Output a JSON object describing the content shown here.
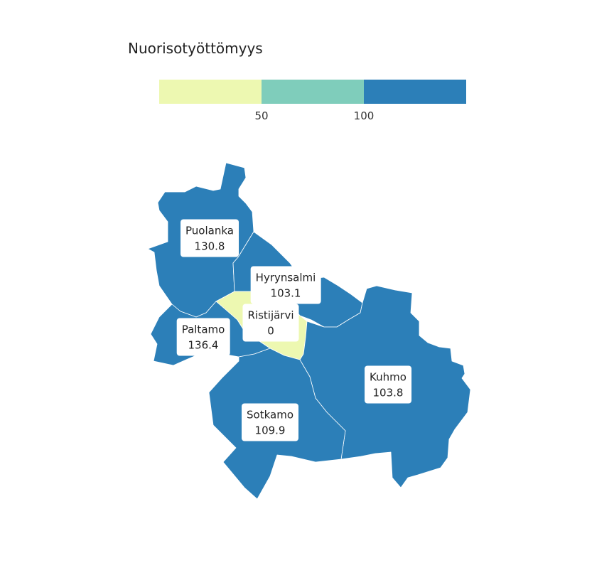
{
  "legend": {
    "title": "Nuorisotyöttömyys",
    "colors": [
      "#edf8b1",
      "#7fcdbb",
      "#2c7fb8"
    ],
    "ticks": [
      "50",
      "100"
    ]
  },
  "regions": [
    {
      "name": "Puolanka",
      "value": "130.8",
      "color": "#2c7fb8"
    },
    {
      "name": "Hyrynsalmi",
      "value": "103.1",
      "color": "#2c7fb8"
    },
    {
      "name": "Ristijärvi",
      "value": "0",
      "color": "#edf8b1"
    },
    {
      "name": "Paltamo",
      "value": "136.4",
      "color": "#2c7fb8"
    },
    {
      "name": "Kuhmo",
      "value": "103.8",
      "color": "#2c7fb8"
    },
    {
      "name": "Sotkamo",
      "value": "109.9",
      "color": "#2c7fb8"
    }
  ]
}
